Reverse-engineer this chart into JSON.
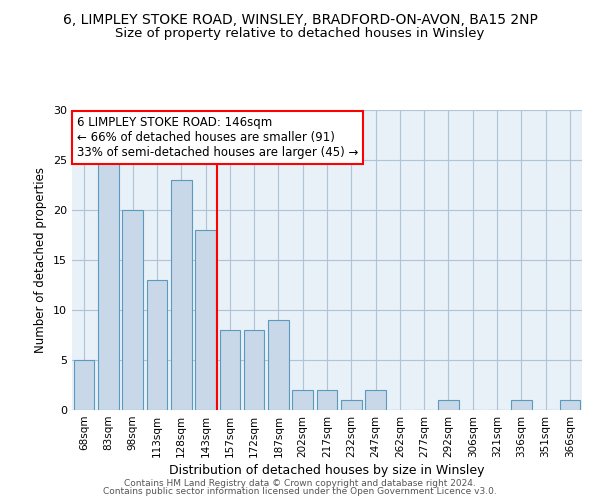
{
  "title1": "6, LIMPLEY STOKE ROAD, WINSLEY, BRADFORD-ON-AVON, BA15 2NP",
  "title2": "Size of property relative to detached houses in Winsley",
  "xlabel": "Distribution of detached houses by size in Winsley",
  "ylabel": "Number of detached properties",
  "categories": [
    "68sqm",
    "83sqm",
    "98sqm",
    "113sqm",
    "128sqm",
    "143sqm",
    "157sqm",
    "172sqm",
    "187sqm",
    "202sqm",
    "217sqm",
    "232sqm",
    "247sqm",
    "262sqm",
    "277sqm",
    "292sqm",
    "306sqm",
    "321sqm",
    "336sqm",
    "351sqm",
    "366sqm"
  ],
  "values": [
    5,
    25,
    20,
    13,
    23,
    18,
    8,
    8,
    9,
    2,
    2,
    1,
    2,
    0,
    0,
    1,
    0,
    0,
    1,
    0,
    1
  ],
  "bar_color": "#c8d8e8",
  "bar_edge_color": "#5a9abf",
  "bar_edge_width": 0.8,
  "red_line_x": 5.48,
  "annotation_line1": "6 LIMPLEY STOKE ROAD: 146sqm",
  "annotation_line2": "← 66% of detached houses are smaller (91)",
  "annotation_line3": "33% of semi-detached houses are larger (45) →",
  "annotation_box_color": "white",
  "annotation_box_edge": "red",
  "ylim": [
    0,
    30
  ],
  "yticks": [
    0,
    5,
    10,
    15,
    20,
    25,
    30
  ],
  "grid_color": "#b0c4d8",
  "background_color": "#e8f0f8",
  "footer1": "Contains HM Land Registry data © Crown copyright and database right 2024.",
  "footer2": "Contains public sector information licensed under the Open Government Licence v3.0.",
  "title1_fontsize": 10,
  "title2_fontsize": 9.5,
  "tick_fontsize": 7.5,
  "ylabel_fontsize": 8.5,
  "xlabel_fontsize": 9,
  "annotation_fontsize": 8.5
}
